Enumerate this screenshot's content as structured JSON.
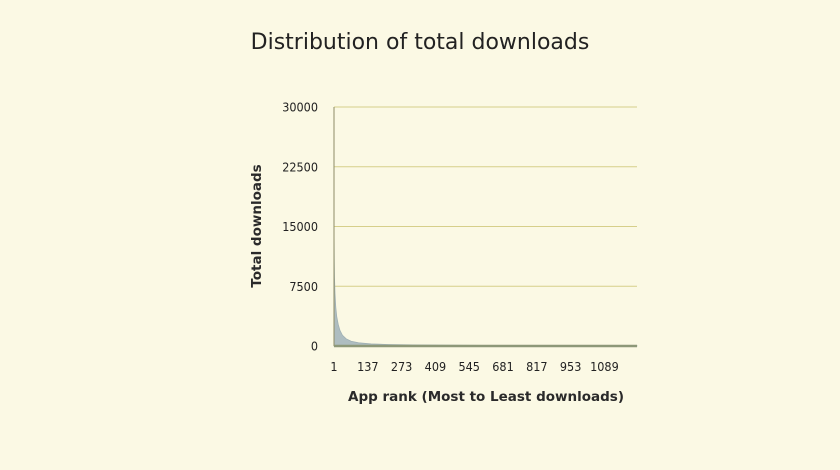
{
  "chart_data": {
    "type": "area",
    "title": "Distribution of total downloads",
    "xlabel": "App rank (Most to Least downloads)",
    "ylabel": "Total downloads",
    "xlim": [
      1,
      1220
    ],
    "ylim": [
      0,
      30000
    ],
    "grid": true,
    "yticks": [
      0,
      7500,
      15000,
      22500,
      30000
    ],
    "xticks": [
      1,
      137,
      273,
      409,
      545,
      681,
      817,
      953,
      1089
    ],
    "series": [
      {
        "x": [
          1,
          2,
          3,
          5,
          8,
          12,
          18,
          25,
          35,
          50,
          70,
          100,
          150,
          220,
          320,
          450,
          600,
          800,
          1000,
          1220
        ],
        "values": [
          15500,
          11000,
          8600,
          6600,
          4900,
          3700,
          2700,
          1950,
          1350,
          900,
          600,
          400,
          260,
          180,
          130,
          100,
          80,
          60,
          45,
          35
        ]
      }
    ],
    "colors": {
      "fill": "#aebdc0",
      "grid": "#d6cf8a",
      "axis": "#8c8c66",
      "baseline": "#8d9878"
    }
  }
}
